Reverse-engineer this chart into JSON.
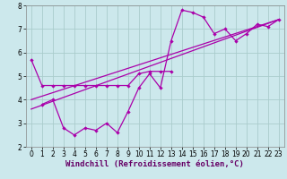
{
  "background_color": "#cce8ec",
  "grid_color": "#aacccc",
  "line_color": "#aa00aa",
  "xlim": [
    -0.5,
    23.5
  ],
  "ylim": [
    2,
    8
  ],
  "xlabel": "Windchill (Refroidissement éolien,°C)",
  "xticks": [
    0,
    1,
    2,
    3,
    4,
    5,
    6,
    7,
    8,
    9,
    10,
    11,
    12,
    13,
    14,
    15,
    16,
    17,
    18,
    19,
    20,
    21,
    22,
    23
  ],
  "yticks": [
    2,
    3,
    4,
    5,
    6,
    7,
    8
  ],
  "line1_x": [
    0,
    1,
    2,
    3,
    4,
    5,
    6,
    7,
    8,
    9,
    10,
    11,
    12,
    13
  ],
  "line1_y": [
    5.7,
    4.6,
    4.6,
    4.6,
    4.6,
    4.6,
    4.6,
    4.6,
    4.6,
    4.6,
    5.1,
    5.2,
    5.2,
    5.2
  ],
  "line2_x": [
    1,
    2,
    3,
    4,
    5,
    6,
    7,
    8,
    9,
    10,
    11,
    12,
    13,
    14,
    15,
    16,
    17,
    18,
    19,
    20,
    21,
    22,
    23
  ],
  "line2_y": [
    3.8,
    4.0,
    2.8,
    2.5,
    2.8,
    2.7,
    3.0,
    2.6,
    3.5,
    4.5,
    5.1,
    4.5,
    6.5,
    7.8,
    7.7,
    7.5,
    6.8,
    7.0,
    6.5,
    6.8,
    7.2,
    7.1,
    7.4
  ],
  "trend1_x": [
    0,
    23
  ],
  "trend1_y": [
    3.6,
    7.4
  ],
  "trend2_x": [
    0,
    23
  ],
  "trend2_y": [
    4.0,
    7.4
  ],
  "xlabel_color": "#660066",
  "xlabel_fontsize": 6.5,
  "tick_fontsize": 5.5
}
